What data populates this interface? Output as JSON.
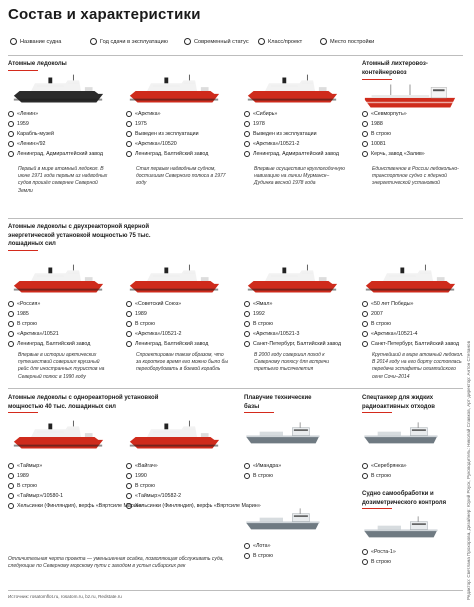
{
  "title": "Состав и характеристики",
  "legend": [
    {
      "label": "Название судна",
      "icon": "info-icon"
    },
    {
      "label": "Год сдачи в эксплуатацию",
      "icon": "calendar-icon"
    },
    {
      "label": "Современный статус",
      "icon": "status-icon"
    },
    {
      "label": "Класс/проект",
      "icon": "class-icon"
    },
    {
      "label": "Место постройки",
      "icon": "location-icon"
    }
  ],
  "sections": {
    "atomic_icebreakers": "Атомные ледоколы",
    "lighter_carrier": "Атомный лихтеровоз-контейнеровоз",
    "two_reactor": "Атомные ледоколы с двухреакторной ядерной энергетической установкой мощностью 75 тыс. лошадиных сил",
    "one_reactor": "Атомные ледоколы с однореакторной установкой мощностью 40 тыс. лошадиных сил",
    "floating_bases": "Плавучие технические базы",
    "tankers": "Спецтанкер для жидких радиоактивных отходов",
    "dosimetric": "Судно самообработки и дозиметрического контроля"
  },
  "row1": [
    {
      "name": "«Ленин»",
      "year": "1959",
      "status": "Карабль-музей",
      "class": "«Ленин»/92",
      "place": "Ленинград, Адмиралтейский завод",
      "note": "Первый в мире атомный ледокол. В июне 1971 года первым из надводных судов прошёл севернее Северной Земли"
    },
    {
      "name": "«Арктика»",
      "year": "1975",
      "status": "Выведен из эксплуатации",
      "class": "«Арктика»/10520",
      "place": "Ленинград, Балтийский завод",
      "note": "Стал первым надводным судном, достигшим Северного полюса в 1977 году"
    },
    {
      "name": "«Сибирь»",
      "year": "1978",
      "status": "Выведен из эксплуатации",
      "class": "«Арктика»/10521-2",
      "place": "Ленинград, Адмиралтейский завод",
      "note": "Впервые осуществил круглогодичную навигацию на линии Мурманск–Дудинка весной 1978 года"
    },
    {
      "name": "«Севморпуть»",
      "year": "1988",
      "status": "В строю",
      "class": "10081",
      "place": "Керчь, завод «Залив»",
      "note": "Единственное в России ледокольно-транспортное судно с ядерной энергетической установкой"
    }
  ],
  "row2": [
    {
      "name": "«Россия»",
      "year": "1985",
      "status": "В строю",
      "class": "«Арктика»/10521",
      "place": "Ленинград, Балтийский завод",
      "note": "Впервые в истории арктических путешествий совершил круизный рейс для иностранных туристов на Северный полюс в 1990 году"
    },
    {
      "name": "«Советский Союз»",
      "year": "1989",
      "status": "В строю",
      "class": "«Арктика»/10521-2",
      "place": "Ленинград, Балтийский завод",
      "note": "Спроектирован таким образом, что за короткое время его можно было бы переоборудовать в боевой корабль"
    },
    {
      "name": "«Ямал»",
      "year": "1992",
      "status": "В строю",
      "class": "«Арктика»/10521-3",
      "place": "Санкт-Петербург, Балтийский завод",
      "note": "В 2000 году совершил поход к Северному полюсу для встречи третьего тысячелетия"
    },
    {
      "name": "«50 лет Победы»",
      "year": "2007",
      "status": "В строю",
      "class": "«Арктика»/10521-4",
      "place": "Санкт-Петербург, Балтийский завод",
      "note": "Крупнейший в мире атомный ледокол. В 2014 году на его борту состоялась передача эстафеты олимпийского огня Сочи–2014"
    }
  ],
  "row3": [
    {
      "name": "«Таймыр»",
      "year": "1989",
      "status": "В строю",
      "class": "«Таймыр»/10580-1",
      "place": "Хельсинки (Финляндия), верфь «Вяртсиле Марин»"
    },
    {
      "name": "«Вайгач»",
      "year": "1990",
      "status": "В строю",
      "class": "«Таймыр»/10582-2",
      "place": "Хельсинки (Финляндия), верфь «Вяртсиле Марин»"
    }
  ],
  "row3_note": "Отличительная черта проекта — уменьшенная осадка, позволяющая обслуживать суда, следующие по Северному морскому пути с заходом в устья сибирских рек",
  "bases": [
    {
      "name": "«Имандра»",
      "status": "В строю"
    },
    {
      "name": "«Лота»",
      "status": "В строю"
    }
  ],
  "tanker": {
    "name": "«Серебрянка»",
    "status": "В строю"
  },
  "dosimetric_ship": {
    "name": "«Роста-1»",
    "status": "В строю"
  },
  "credits": "Источник: rosatomflot.ru, rosatom.ru, bz.ru, Redstate.ru",
  "side_credits": "Редактор: Светлана Прохорова, Дизайнер: Юрий Роуск, Руководитель: Николай Славков, Арт-директор: Антон Степанов",
  "colors": {
    "accent": "#d42a1c",
    "hull_dark": "#2b2b2b",
    "hull_red": "#cf2b1c",
    "tech_gray": "#6f7a82"
  }
}
